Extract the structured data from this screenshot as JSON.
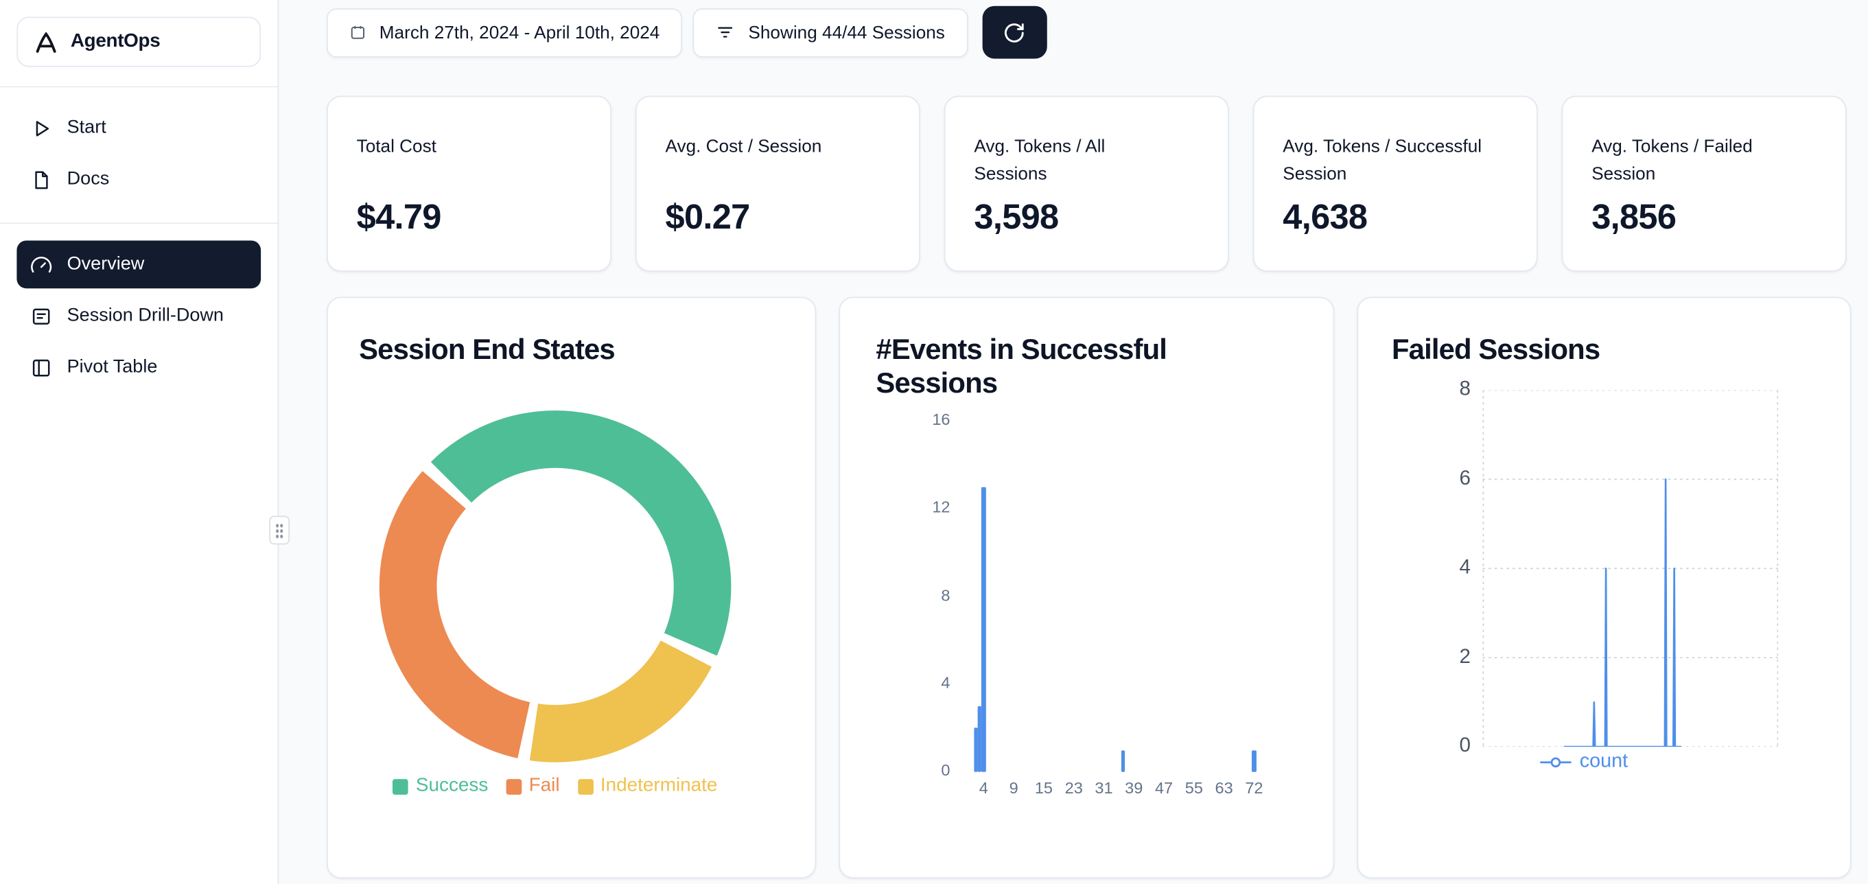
{
  "app": {
    "name": "AgentOps"
  },
  "sidebar": {
    "items": [
      {
        "label": "Start",
        "icon": "play-icon",
        "active": false
      },
      {
        "label": "Docs",
        "icon": "docs-icon",
        "active": false
      },
      {
        "label": "Overview",
        "icon": "gauge-icon",
        "active": true
      },
      {
        "label": "Session Drill-Down",
        "icon": "sessions-icon",
        "active": false
      },
      {
        "label": "Pivot Table",
        "icon": "pivot-table-icon",
        "active": false
      }
    ]
  },
  "toolbar": {
    "date_range": "March 27th, 2024 - April 10th, 2024",
    "sessions_filter": "Showing 44/44 Sessions",
    "refresh_icon": "refresh-icon"
  },
  "stats": [
    {
      "label": "Total Cost",
      "value": "$4.79"
    },
    {
      "label": "Avg. Cost / Session",
      "value": "$0.27"
    },
    {
      "label": "Avg. Tokens / All Sessions",
      "value": "3,598"
    },
    {
      "label": "Avg. Tokens / Successful Session",
      "value": "4,638"
    },
    {
      "label": "Avg. Tokens / Failed Session",
      "value": "3,856"
    }
  ],
  "chart_data": [
    {
      "type": "pie",
      "title": "Session End States",
      "donut": true,
      "total_sessions": 44,
      "slices": [
        {
          "label": "Success",
          "value": 20,
          "color": "#4ebe96"
        },
        {
          "label": "Fail",
          "value": 15,
          "color": "#ec8a52"
        },
        {
          "label": "Indeterminate",
          "value": 9,
          "color": "#efc14e"
        }
      ],
      "draw_order": [
        0,
        2,
        1
      ],
      "start_angle_deg": 315,
      "slice_gap_deg": 4,
      "legend_position": "bottom"
    },
    {
      "type": "bar",
      "title": "#Events in Successful Sessions",
      "xlabel": "",
      "ylabel": "",
      "ylim": [
        0,
        16
      ],
      "yticks": [
        0,
        4,
        8,
        12,
        16
      ],
      "xticks": [
        4,
        9,
        15,
        23,
        31,
        39,
        47,
        55,
        63,
        72
      ],
      "bars": [
        {
          "x": 2,
          "count": 2
        },
        {
          "x": 3,
          "count": 3
        },
        {
          "x": 4,
          "count": 13
        },
        {
          "x": 39,
          "count": 1
        },
        {
          "x": 72,
          "count": 1
        }
      ],
      "color": "#4e8fea",
      "grid": false
    },
    {
      "type": "line",
      "title": "Failed Sessions",
      "ylim": [
        0,
        8
      ],
      "yticks": [
        0,
        2,
        4,
        6,
        8
      ],
      "grid": "dashed",
      "legend_position": "bottom",
      "series": [
        {
          "name": "count",
          "color": "#4e8fea",
          "x_unit": "percent_of_range",
          "points": [
            [
              27.5,
              0
            ],
            [
              37.4,
              0
            ],
            [
              37.7,
              1
            ],
            [
              38.0,
              0
            ],
            [
              41.4,
              0
            ],
            [
              41.7,
              4
            ],
            [
              42.0,
              0
            ],
            [
              61.6,
              0
            ],
            [
              61.9,
              6
            ],
            [
              62.2,
              0
            ],
            [
              64.5,
              0
            ],
            [
              64.8,
              4
            ],
            [
              65.1,
              0
            ],
            [
              67.2,
              0
            ]
          ]
        }
      ]
    }
  ]
}
